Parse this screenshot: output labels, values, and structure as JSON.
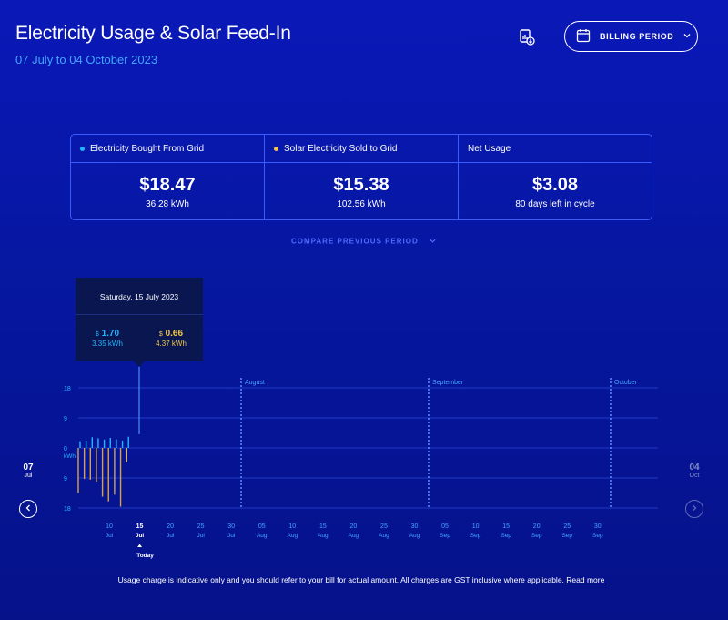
{
  "header": {
    "title": "Electricity Usage & Solar Feed-In",
    "date_range": "07 July to 04 October 2023",
    "billing_button_label": "BILLING PERIOD",
    "download_icon": "download-report-icon",
    "calendar_icon": "calendar-icon"
  },
  "summary": {
    "bought": {
      "label": "Electricity Bought From Grid",
      "amount": "$18.47",
      "sub": "36.28 kWh",
      "dot_color": "#23b7ff"
    },
    "sold": {
      "label": "Solar Electricity Sold to Grid",
      "amount": "$15.38",
      "sub": "102.56 kWh",
      "dot_color": "#f2c84b"
    },
    "net": {
      "label": "Net Usage",
      "amount": "$3.08",
      "sub": "80 days left in cycle"
    }
  },
  "compare_label": "COMPARE PREVIOUS PERIOD",
  "tooltip": {
    "date": "Saturday, 15 July 2023",
    "bought_currency": "$",
    "bought_amount": "1.70",
    "bought_kwh": "3.35 kWh",
    "sold_currency": "$",
    "sold_amount": "0.66",
    "sold_kwh": "4.37 kWh"
  },
  "range_start": {
    "day": "07",
    "month": "Jul"
  },
  "range_end": {
    "day": "04",
    "month": "Oct"
  },
  "footnote": {
    "text": "Usage charge is indicative only and you should refer to your bill for actual amount. All charges are GST inclusive where applicable.",
    "link": "Read more"
  },
  "chart_data": {
    "type": "bar",
    "y_ticks": [
      "18",
      "9",
      "0",
      "9",
      "18"
    ],
    "y_unit": "kWh",
    "ylim": [
      -18,
      18
    ],
    "month_markers": [
      "August",
      "September",
      "October"
    ],
    "x_ticks": [
      {
        "day": "10",
        "month": "Jul"
      },
      {
        "day": "15",
        "month": "Jul"
      },
      {
        "day": "20",
        "month": "Jul"
      },
      {
        "day": "25",
        "month": "Jul"
      },
      {
        "day": "30",
        "month": "Jul"
      },
      {
        "day": "05",
        "month": "Aug"
      },
      {
        "day": "10",
        "month": "Aug"
      },
      {
        "day": "15",
        "month": "Aug"
      },
      {
        "day": "20",
        "month": "Aug"
      },
      {
        "day": "25",
        "month": "Aug"
      },
      {
        "day": "30",
        "month": "Aug"
      },
      {
        "day": "05",
        "month": "Sep"
      },
      {
        "day": "10",
        "month": "Sep"
      },
      {
        "day": "15",
        "month": "Sep"
      },
      {
        "day": "20",
        "month": "Sep"
      },
      {
        "day": "25",
        "month": "Sep"
      },
      {
        "day": "30",
        "month": "Sep"
      }
    ],
    "today_label": "Today",
    "today_tick_index": 1,
    "series": [
      {
        "color": "#23b7ff",
        "x": [
          "2023-07-07",
          "2023-07-08",
          "2023-07-09",
          "2023-07-10",
          "2023-07-11",
          "2023-07-12",
          "2023-07-13",
          "2023-07-14",
          "2023-07-15"
        ],
        "values": [
          2.0,
          2.2,
          3.2,
          2.9,
          2.5,
          3.0,
          2.6,
          2.2,
          3.35
        ]
      },
      {
        "color": "#d4a24c",
        "x": [
          "2023-07-07",
          "2023-07-08",
          "2023-07-09",
          "2023-07-10",
          "2023-07-11",
          "2023-07-12",
          "2023-07-13",
          "2023-07-14",
          "2023-07-15"
        ],
        "values": [
          -13.5,
          -9.3,
          -9.5,
          -10.1,
          -14.6,
          -16.0,
          -14.0,
          -17.6,
          -4.37
        ]
      }
    ],
    "colors": {
      "bought": "#23b7ff",
      "sold": "#f2c84b",
      "grid": "#2a47d8",
      "month_line": "#5c8bff"
    }
  }
}
